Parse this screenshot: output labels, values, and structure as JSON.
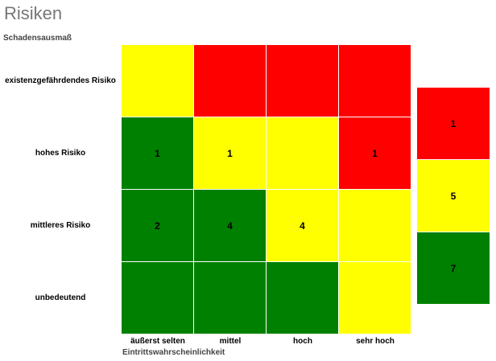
{
  "page": {
    "title": "Risiken"
  },
  "chart_data": {
    "type": "heatmap",
    "title": "Risiken",
    "ylabel": "Schadensausmaß",
    "xlabel": "Eintrittswahrscheinlichkeit",
    "rows": [
      "existenzgefährdendes Risiko",
      "hohes Risiko",
      "mittleres Risiko",
      "unbedeutend"
    ],
    "columns": [
      "äußerst selten",
      "mittel",
      "hoch",
      "sehr hoch"
    ],
    "colors": {
      "green": "#008000",
      "yellow": "#ffff00",
      "red": "#ff0000"
    },
    "cell_colors": [
      [
        "yellow",
        "red",
        "red",
        "red"
      ],
      [
        "green",
        "yellow",
        "yellow",
        "red"
      ],
      [
        "green",
        "green",
        "yellow",
        "yellow"
      ],
      [
        "green",
        "green",
        "green",
        "yellow"
      ]
    ],
    "values": [
      [
        "",
        "",
        "",
        ""
      ],
      [
        "1",
        "1",
        "",
        "1"
      ],
      [
        "2",
        "4",
        "4",
        ""
      ],
      [
        "",
        "",
        "",
        ""
      ]
    ],
    "summary": [
      {
        "color": "red",
        "count": "1"
      },
      {
        "color": "yellow",
        "count": "5"
      },
      {
        "color": "green",
        "count": "7"
      }
    ]
  }
}
